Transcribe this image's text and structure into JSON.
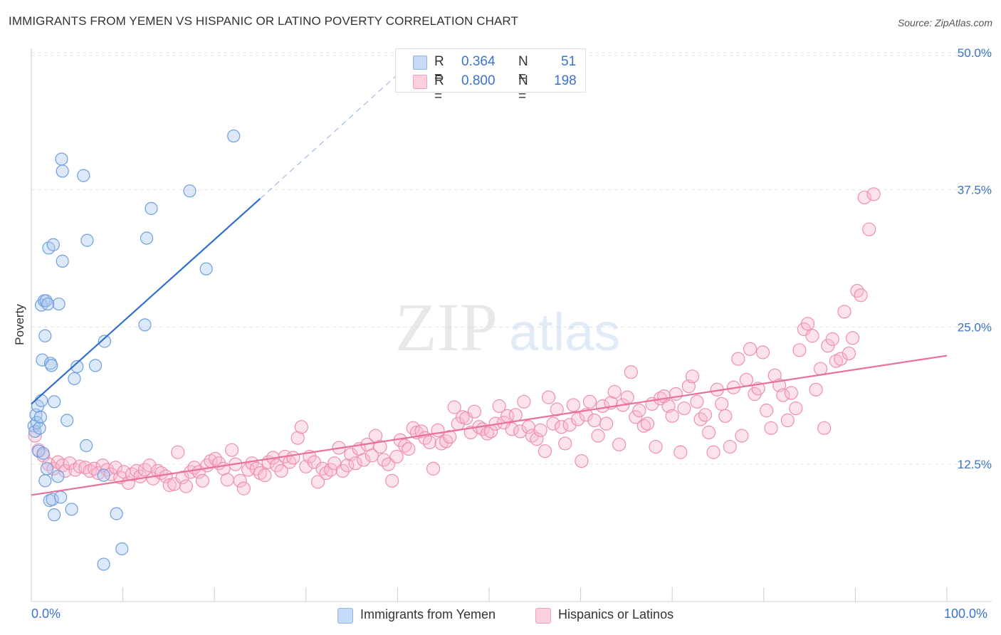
{
  "header": {
    "title": "IMMIGRANTS FROM YEMEN VS HISPANIC OR LATINO POVERTY CORRELATION CHART",
    "source": "Source: ZipAtlas.com"
  },
  "watermark": {
    "zip": "ZIP",
    "atlas": "atlas"
  },
  "legend": {
    "rows": [
      {
        "r_label": "R =",
        "r_value": "0.364",
        "n_label": "N =",
        "n_value": "51",
        "color": "#a9c8f0"
      },
      {
        "r_label": "R =",
        "r_value": "0.800",
        "n_label": "N =",
        "n_value": "198",
        "color": "#f7b8cc"
      }
    ]
  },
  "bottom_legend": {
    "items": [
      {
        "label": "Immigrants from Yemen",
        "color": "#a9c8f0"
      },
      {
        "label": "Hispanics or Latinos",
        "color": "#f7b8cc"
      }
    ]
  },
  "chart_data": {
    "type": "scatter",
    "title": "IMMIGRANTS FROM YEMEN VS HISPANIC OR LATINO POVERTY CORRELATION CHART",
    "ylabel": "Poverty",
    "xlabel": "",
    "xlim": [
      0,
      100
    ],
    "ylim": [
      0,
      50
    ],
    "x_tick_labels": [
      "0.0%",
      "100.0%"
    ],
    "y_ticks": [
      12.5,
      25.0,
      37.5,
      50.0
    ],
    "y_tick_labels": [
      "12.5%",
      "25.0%",
      "37.5%",
      "50.0%"
    ],
    "grid": true,
    "colors": {
      "blue_stroke": "#6f9fdc",
      "blue_fill": "#a9c8f0",
      "blue_line": "#2f6fd0",
      "pink_stroke": "#ee8fae",
      "pink_fill": "#f7b8cc",
      "pink_line": "#e8709a",
      "tick_label": "#3b73c8"
    },
    "series": [
      {
        "name": "Immigrants from Yemen",
        "trend": {
          "x": [
            0,
            25
          ],
          "y": [
            18.0,
            36.7
          ],
          "dashed_to": [
            40,
            48.0
          ]
        },
        "points": [
          [
            0.3,
            16.0
          ],
          [
            0.4,
            15.5
          ],
          [
            0.5,
            17.0
          ],
          [
            0.6,
            16.3
          ],
          [
            0.7,
            17.8
          ],
          [
            0.8,
            13.7
          ],
          [
            0.9,
            15.8
          ],
          [
            1.0,
            16.8
          ],
          [
            1.1,
            27.0
          ],
          [
            1.1,
            18.3
          ],
          [
            1.2,
            22.0
          ],
          [
            1.3,
            13.5
          ],
          [
            1.4,
            27.4
          ],
          [
            1.5,
            11.0
          ],
          [
            1.5,
            24.2
          ],
          [
            1.6,
            27.4
          ],
          [
            1.7,
            12.1
          ],
          [
            1.8,
            27.1
          ],
          [
            1.9,
            32.2
          ],
          [
            2.0,
            9.2
          ],
          [
            2.1,
            21.7
          ],
          [
            2.2,
            21.5
          ],
          [
            2.3,
            9.3
          ],
          [
            2.4,
            32.5
          ],
          [
            2.5,
            7.9
          ],
          [
            2.5,
            18.2
          ],
          [
            2.9,
            11.4
          ],
          [
            3.0,
            27.1
          ],
          [
            3.2,
            9.5
          ],
          [
            3.3,
            40.3
          ],
          [
            3.4,
            31.0
          ],
          [
            3.4,
            39.2
          ],
          [
            3.9,
            16.5
          ],
          [
            4.4,
            8.4
          ],
          [
            4.7,
            20.3
          ],
          [
            5.0,
            21.4
          ],
          [
            5.7,
            38.8
          ],
          [
            6.0,
            14.2
          ],
          [
            6.1,
            32.9
          ],
          [
            7.0,
            21.5
          ],
          [
            7.9,
            11.5
          ],
          [
            7.9,
            3.4
          ],
          [
            8.0,
            23.7
          ],
          [
            9.3,
            8.0
          ],
          [
            9.9,
            4.8
          ],
          [
            12.4,
            25.2
          ],
          [
            12.6,
            33.1
          ],
          [
            13.1,
            35.8
          ],
          [
            17.3,
            37.4
          ],
          [
            19.1,
            30.3
          ],
          [
            22.1,
            42.4
          ]
        ]
      },
      {
        "name": "Hispanics or Latinos",
        "trend": {
          "x": [
            0,
            100
          ],
          "y": [
            9.7,
            22.4
          ]
        },
        "points": [
          [
            0.4,
            15.1
          ],
          [
            0.8,
            13.8
          ],
          [
            1.3,
            13.3
          ],
          [
            1.9,
            12.5
          ],
          [
            2.4,
            12.1
          ],
          [
            2.9,
            12.7
          ],
          [
            3.4,
            12.4
          ],
          [
            3.7,
            11.9
          ],
          [
            4.2,
            12.6
          ],
          [
            4.8,
            12.0
          ],
          [
            5.3,
            12.3
          ],
          [
            5.9,
            12.2
          ],
          [
            6.4,
            11.9
          ],
          [
            6.9,
            12.1
          ],
          [
            7.3,
            11.7
          ],
          [
            7.8,
            12.4
          ],
          [
            8.3,
            12.0
          ],
          [
            8.7,
            11.6
          ],
          [
            9.2,
            12.2
          ],
          [
            9.7,
            11.3
          ],
          [
            10.1,
            11.8
          ],
          [
            10.6,
            10.8
          ],
          [
            11.0,
            11.6
          ],
          [
            11.5,
            11.9
          ],
          [
            11.9,
            11.4
          ],
          [
            12.4,
            12.0
          ],
          [
            12.9,
            12.4
          ],
          [
            13.3,
            11.2
          ],
          [
            13.8,
            11.9
          ],
          [
            14.2,
            11.7
          ],
          [
            14.7,
            11.4
          ],
          [
            15.1,
            10.6
          ],
          [
            15.6,
            10.7
          ],
          [
            16.0,
            13.6
          ],
          [
            16.5,
            11.3
          ],
          [
            16.9,
            10.5
          ],
          [
            17.4,
            11.8
          ],
          [
            17.8,
            12.2
          ],
          [
            18.3,
            11.8
          ],
          [
            18.7,
            11.0
          ],
          [
            19.2,
            12.4
          ],
          [
            19.6,
            12.8
          ],
          [
            20.1,
            13.0
          ],
          [
            20.5,
            12.6
          ],
          [
            21.0,
            12.1
          ],
          [
            21.4,
            11.1
          ],
          [
            21.9,
            13.8
          ],
          [
            22.3,
            12.5
          ],
          [
            22.8,
            11.0
          ],
          [
            23.2,
            10.3
          ],
          [
            23.7,
            12.0
          ],
          [
            24.1,
            12.6
          ],
          [
            24.6,
            12.1
          ],
          [
            25.0,
            11.7
          ],
          [
            25.5,
            11.5
          ],
          [
            25.9,
            12.7
          ],
          [
            26.4,
            13.1
          ],
          [
            26.8,
            12.4
          ],
          [
            27.3,
            11.9
          ],
          [
            27.7,
            13.2
          ],
          [
            28.2,
            12.7
          ],
          [
            28.6,
            13.1
          ],
          [
            29.1,
            14.9
          ],
          [
            29.5,
            15.9
          ],
          [
            30.0,
            12.3
          ],
          [
            30.4,
            13.2
          ],
          [
            30.9,
            12.7
          ],
          [
            31.3,
            10.9
          ],
          [
            31.8,
            12.1
          ],
          [
            32.2,
            11.7
          ],
          [
            32.7,
            12.0
          ],
          [
            33.1,
            12.6
          ],
          [
            33.6,
            14.0
          ],
          [
            34.0,
            11.9
          ],
          [
            34.5,
            12.4
          ],
          [
            34.9,
            13.4
          ],
          [
            35.4,
            12.6
          ],
          [
            35.8,
            13.9
          ],
          [
            36.3,
            12.9
          ],
          [
            36.7,
            14.3
          ],
          [
            37.2,
            13.3
          ],
          [
            37.6,
            15.1
          ],
          [
            38.1,
            14.1
          ],
          [
            38.5,
            12.9
          ],
          [
            39.0,
            12.5
          ],
          [
            39.4,
            11.0
          ],
          [
            39.9,
            13.2
          ],
          [
            40.3,
            14.7
          ],
          [
            40.8,
            14.2
          ],
          [
            41.2,
            13.9
          ],
          [
            41.7,
            15.8
          ],
          [
            42.1,
            15.4
          ],
          [
            42.6,
            15.5
          ],
          [
            43.0,
            14.9
          ],
          [
            43.5,
            14.5
          ],
          [
            43.9,
            12.1
          ],
          [
            44.4,
            15.6
          ],
          [
            44.8,
            14.4
          ],
          [
            45.3,
            14.6
          ],
          [
            45.7,
            15.0
          ],
          [
            46.2,
            17.7
          ],
          [
            46.6,
            16.2
          ],
          [
            47.1,
            16.8
          ],
          [
            47.5,
            16.7
          ],
          [
            48.0,
            15.4
          ],
          [
            48.4,
            17.3
          ],
          [
            48.9,
            15.9
          ],
          [
            49.3,
            15.7
          ],
          [
            49.8,
            15.3
          ],
          [
            50.2,
            15.5
          ],
          [
            50.7,
            16.2
          ],
          [
            51.1,
            17.8
          ],
          [
            51.6,
            16.3
          ],
          [
            52.0,
            16.9
          ],
          [
            52.5,
            15.7
          ],
          [
            52.9,
            17.0
          ],
          [
            53.4,
            15.5
          ],
          [
            53.8,
            18.2
          ],
          [
            54.3,
            15.9
          ],
          [
            54.7,
            15.1
          ],
          [
            55.2,
            14.8
          ],
          [
            55.6,
            15.6
          ],
          [
            56.1,
            13.7
          ],
          [
            56.5,
            18.6
          ],
          [
            57.0,
            16.2
          ],
          [
            57.4,
            17.5
          ],
          [
            57.9,
            15.9
          ],
          [
            58.3,
            14.4
          ],
          [
            58.8,
            16.1
          ],
          [
            59.2,
            17.9
          ],
          [
            59.7,
            16.6
          ],
          [
            60.1,
            12.8
          ],
          [
            60.6,
            17.0
          ],
          [
            61.0,
            18.2
          ],
          [
            61.5,
            16.5
          ],
          [
            61.9,
            15.1
          ],
          [
            62.4,
            17.8
          ],
          [
            62.8,
            16.2
          ],
          [
            63.3,
            18.1
          ],
          [
            63.7,
            19.1
          ],
          [
            64.2,
            14.3
          ],
          [
            64.6,
            17.9
          ],
          [
            65.1,
            18.6
          ],
          [
            65.5,
            20.9
          ],
          [
            66.0,
            16.8
          ],
          [
            66.4,
            17.4
          ],
          [
            66.9,
            16.0
          ],
          [
            67.3,
            16.2
          ],
          [
            67.8,
            18.0
          ],
          [
            68.2,
            14.1
          ],
          [
            68.7,
            18.5
          ],
          [
            69.1,
            18.7
          ],
          [
            69.6,
            17.8
          ],
          [
            70.0,
            16.9
          ],
          [
            70.4,
            18.9
          ],
          [
            70.9,
            13.6
          ],
          [
            71.3,
            17.6
          ],
          [
            71.8,
            19.6
          ],
          [
            72.2,
            20.5
          ],
          [
            72.7,
            18.2
          ],
          [
            73.1,
            16.6
          ],
          [
            73.6,
            17.0
          ],
          [
            74.0,
            15.4
          ],
          [
            74.5,
            13.6
          ],
          [
            74.9,
            19.3
          ],
          [
            75.4,
            18.0
          ],
          [
            75.8,
            16.9
          ],
          [
            76.3,
            14.1
          ],
          [
            76.7,
            19.5
          ],
          [
            77.2,
            22.1
          ],
          [
            77.6,
            15.1
          ],
          [
            78.1,
            20.2
          ],
          [
            78.5,
            23.0
          ],
          [
            79.0,
            18.9
          ],
          [
            79.4,
            19.4
          ],
          [
            79.9,
            22.7
          ],
          [
            80.3,
            17.4
          ],
          [
            80.8,
            15.8
          ],
          [
            81.2,
            20.6
          ],
          [
            81.7,
            19.7
          ],
          [
            82.1,
            18.8
          ],
          [
            82.6,
            16.5
          ],
          [
            83.0,
            19.0
          ],
          [
            83.5,
            17.6
          ],
          [
            83.9,
            22.9
          ],
          [
            84.4,
            24.8
          ],
          [
            84.8,
            25.3
          ],
          [
            85.3,
            24.2
          ],
          [
            85.7,
            19.3
          ],
          [
            86.2,
            21.2
          ],
          [
            86.6,
            15.8
          ],
          [
            87.0,
            23.3
          ],
          [
            87.5,
            23.9
          ],
          [
            87.9,
            21.9
          ],
          [
            88.4,
            22.1
          ],
          [
            88.8,
            26.4
          ],
          [
            89.3,
            22.6
          ],
          [
            89.7,
            24.0
          ],
          [
            90.2,
            28.3
          ],
          [
            90.6,
            27.9
          ],
          [
            91.0,
            36.8
          ],
          [
            91.5,
            33.9
          ],
          [
            92.0,
            37.1
          ]
        ]
      }
    ]
  }
}
